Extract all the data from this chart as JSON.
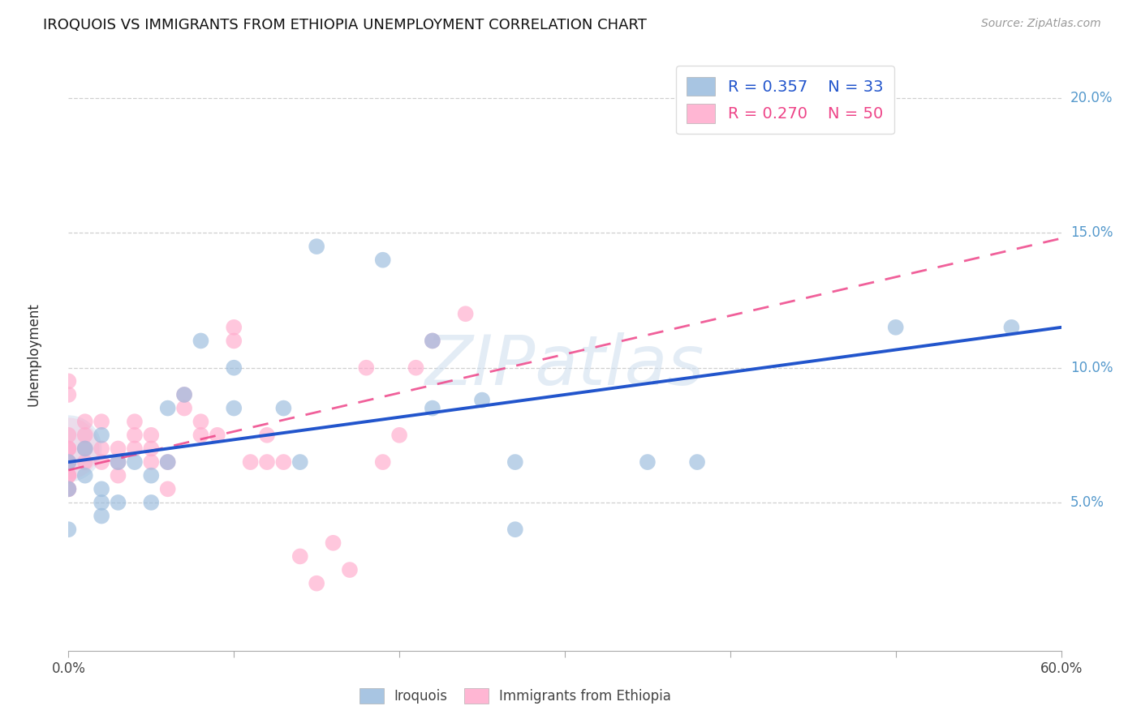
{
  "title": "IROQUOIS VS IMMIGRANTS FROM ETHIOPIA UNEMPLOYMENT CORRELATION CHART",
  "source": "Source: ZipAtlas.com",
  "ylabel": "Unemployment",
  "xlim": [
    0.0,
    0.6
  ],
  "ylim": [
    -0.005,
    0.215
  ],
  "iroquois_R": "0.357",
  "iroquois_N": "33",
  "ethiopia_R": "0.270",
  "ethiopia_N": "50",
  "iroquois_color": "#99BBDD",
  "ethiopia_color": "#FFAACC",
  "iroquois_line_color": "#2255CC",
  "ethiopia_line_color": "#EE4488",
  "watermark": "ZIPatlas",
  "iroquois_x": [
    0.0,
    0.0,
    0.0,
    0.01,
    0.01,
    0.02,
    0.02,
    0.02,
    0.02,
    0.03,
    0.03,
    0.04,
    0.05,
    0.05,
    0.06,
    0.06,
    0.07,
    0.08,
    0.1,
    0.1,
    0.13,
    0.14,
    0.15,
    0.19,
    0.22,
    0.22,
    0.25,
    0.27,
    0.27,
    0.35,
    0.38,
    0.5,
    0.57
  ],
  "iroquois_y": [
    0.065,
    0.055,
    0.04,
    0.06,
    0.07,
    0.045,
    0.05,
    0.055,
    0.075,
    0.05,
    0.065,
    0.065,
    0.05,
    0.06,
    0.065,
    0.085,
    0.09,
    0.11,
    0.1,
    0.085,
    0.085,
    0.065,
    0.145,
    0.14,
    0.11,
    0.085,
    0.088,
    0.065,
    0.04,
    0.065,
    0.065,
    0.115,
    0.115
  ],
  "ethiopia_x": [
    0.0,
    0.0,
    0.0,
    0.0,
    0.0,
    0.0,
    0.0,
    0.0,
    0.0,
    0.0,
    0.0,
    0.01,
    0.01,
    0.01,
    0.01,
    0.02,
    0.02,
    0.02,
    0.03,
    0.03,
    0.03,
    0.04,
    0.04,
    0.04,
    0.05,
    0.05,
    0.05,
    0.06,
    0.06,
    0.07,
    0.07,
    0.08,
    0.08,
    0.09,
    0.1,
    0.1,
    0.11,
    0.12,
    0.12,
    0.13,
    0.14,
    0.15,
    0.16,
    0.17,
    0.18,
    0.19,
    0.2,
    0.21,
    0.22,
    0.24
  ],
  "ethiopia_y": [
    0.055,
    0.055,
    0.06,
    0.06,
    0.065,
    0.065,
    0.07,
    0.07,
    0.075,
    0.09,
    0.095,
    0.065,
    0.07,
    0.075,
    0.08,
    0.065,
    0.07,
    0.08,
    0.06,
    0.065,
    0.07,
    0.07,
    0.075,
    0.08,
    0.065,
    0.07,
    0.075,
    0.055,
    0.065,
    0.085,
    0.09,
    0.075,
    0.08,
    0.075,
    0.11,
    0.115,
    0.065,
    0.065,
    0.075,
    0.065,
    0.03,
    0.02,
    0.035,
    0.025,
    0.1,
    0.065,
    0.075,
    0.1,
    0.11,
    0.12
  ],
  "iroquois_line_x": [
    0.0,
    0.6
  ],
  "iroquois_line_y": [
    0.065,
    0.115
  ],
  "ethiopia_line_x": [
    0.0,
    0.6
  ],
  "ethiopia_line_y": [
    0.062,
    0.148
  ],
  "background_color": "#ffffff",
  "grid_color": "#bbbbbb"
}
